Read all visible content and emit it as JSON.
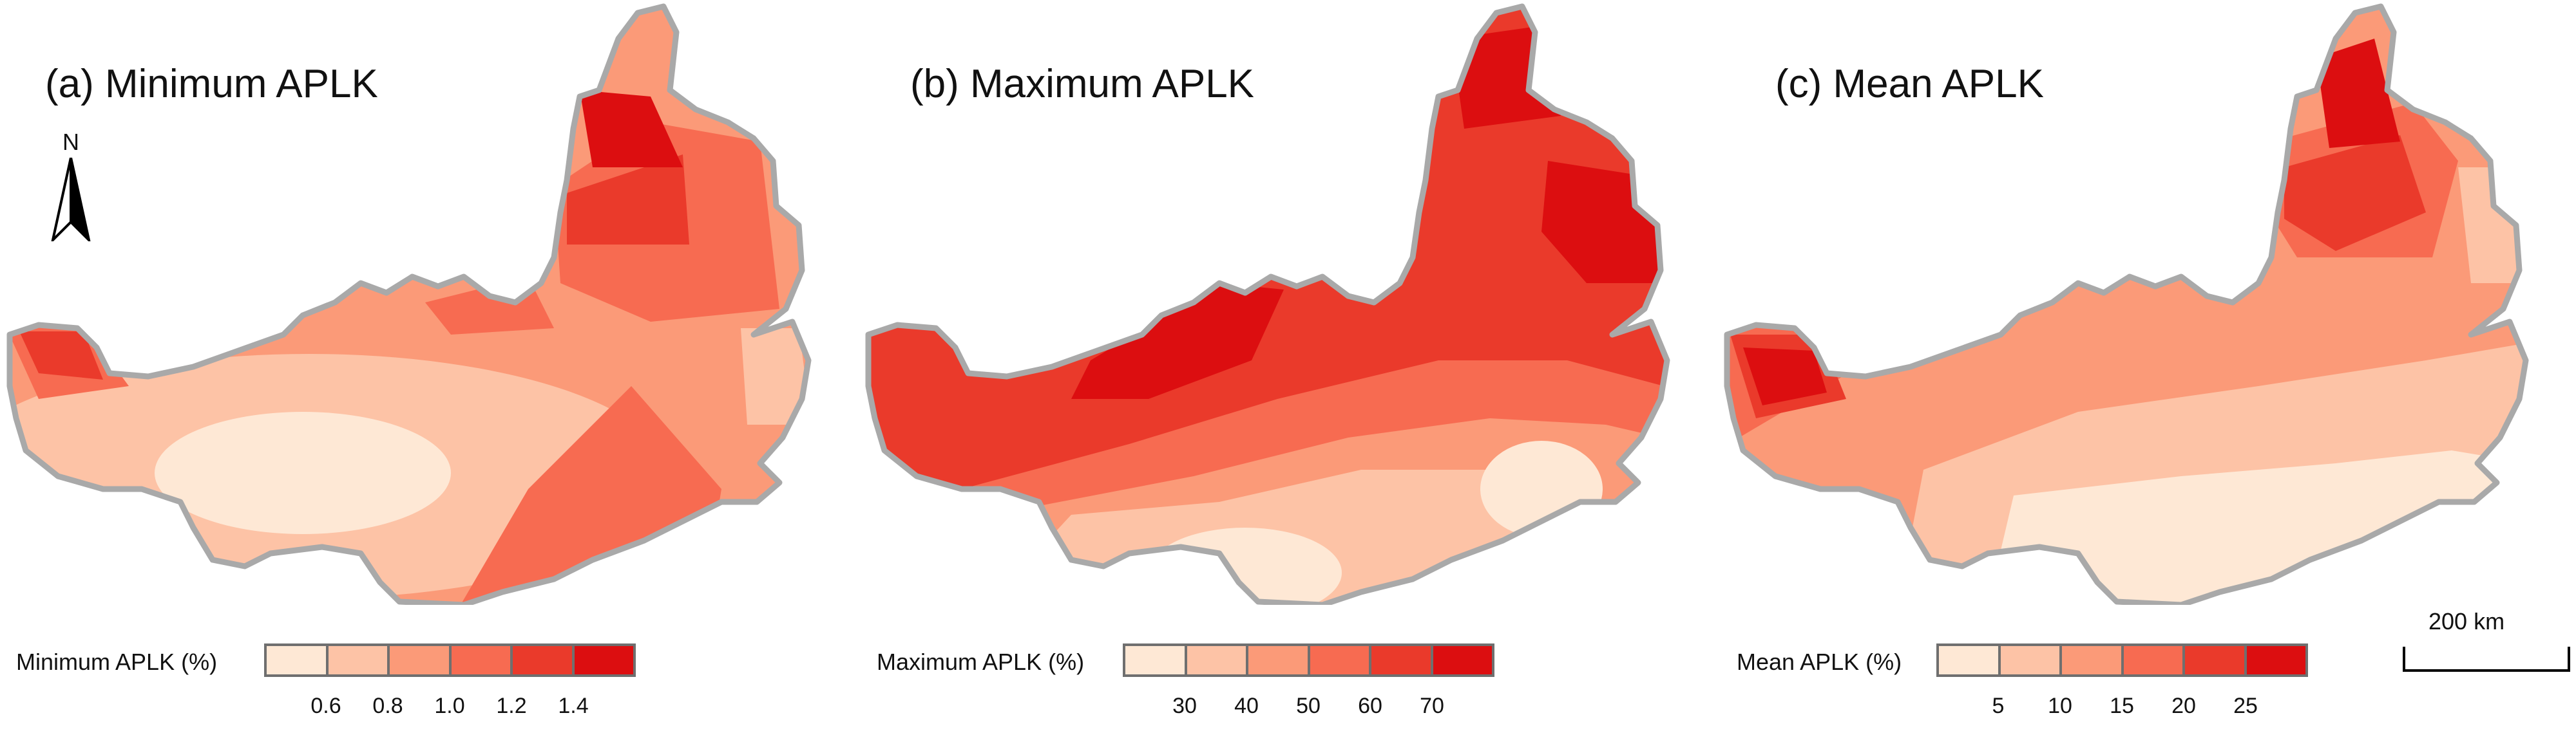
{
  "colors": {
    "c1": "#fee8d5",
    "c2": "#fdc3a6",
    "c3": "#fb9a78",
    "c4": "#f76b51",
    "c5": "#ea3a2b",
    "c6": "#dc0e10",
    "outline": "#a9a9a9"
  },
  "north_arrow": {
    "label": "N",
    "icon": "north-arrow-icon"
  },
  "scale_bar": {
    "label": "200 km"
  },
  "panels": [
    {
      "id": "a",
      "title": "(a) Minimum APLK",
      "legend": {
        "label": "Minimum APLK (%)",
        "ticks": [
          "0.6",
          "0.8",
          "1.0",
          "1.2",
          "1.4"
        ]
      }
    },
    {
      "id": "b",
      "title": "(b) Maximum APLK",
      "legend": {
        "label": "Maximum APLK (%)",
        "ticks": [
          "30",
          "40",
          "50",
          "60",
          "70"
        ]
      }
    },
    {
      "id": "c",
      "title": "(c) Mean APLK",
      "legend": {
        "label": "Mean APLK (%)",
        "ticks": [
          "5",
          "10",
          "15",
          "20",
          "25"
        ]
      }
    }
  ]
}
